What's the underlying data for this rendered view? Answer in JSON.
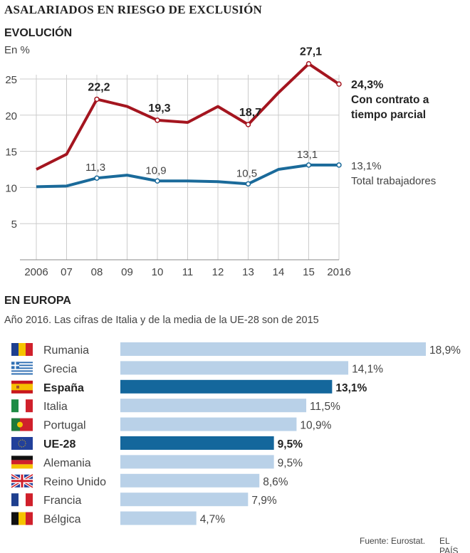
{
  "title": "ASALARIADOS EN RIESGO DE EXCLUSIÓN",
  "section1": {
    "heading": "EVOLUCIÓN",
    "unit": "En %"
  },
  "section2": {
    "heading": "EN EUROPA",
    "subtitle": "Año 2016. Las cifras de Italia y de la media de la UE-28 son de 2015"
  },
  "source": "Fuente: Eurostat.",
  "brand": "EL PAÍS",
  "colors": {
    "part_time": "#a4151f",
    "total": "#1a6a9a",
    "bar_light": "#b9d1e8",
    "bar_highlight": "#14679c"
  },
  "chart_data": [
    {
      "type": "line",
      "ylabel": "En %",
      "ylim": [
        0,
        27.1
      ],
      "yticks": [
        "5",
        "10",
        "15",
        "20",
        "25"
      ],
      "ytick_values": [
        5,
        10,
        15,
        20,
        25
      ],
      "categories": [
        "2006",
        "07",
        "08",
        "09",
        "10",
        "11",
        "12",
        "13",
        "14",
        "15",
        "2016"
      ],
      "grid": true,
      "series": [
        {
          "name": "Con contrato a tiempo parcial",
          "end_label": "24,3%",
          "name_lines": [
            "Con contrato a",
            "tiempo parcial"
          ],
          "values": [
            12.5,
            14.6,
            22.2,
            21.2,
            19.3,
            19.0,
            21.2,
            18.7,
            23.1,
            27.1,
            24.3
          ],
          "point_labels": {
            "2": "22,2",
            "4": "19,3",
            "7": "18,7",
            "9": "27,1"
          }
        },
        {
          "name": "Total trabajadores",
          "end_label": "13,1%",
          "name_lines": [
            "Total trabajadores"
          ],
          "values": [
            10.1,
            10.2,
            11.3,
            11.7,
            10.9,
            10.9,
            10.8,
            10.5,
            12.5,
            13.1,
            13.1
          ],
          "point_labels": {
            "2": "11,3",
            "4": "10,9",
            "7": "10,5",
            "9": "13,1"
          }
        }
      ]
    },
    {
      "type": "bar",
      "orientation": "horizontal",
      "categories": [
        "Rumania",
        "Grecia",
        "España",
        "Italia",
        "Portugal",
        "UE-28",
        "Alemania",
        "Reino Unido",
        "Francia",
        "Bélgica"
      ],
      "values": [
        18.9,
        14.1,
        13.1,
        11.5,
        10.9,
        9.5,
        9.5,
        8.6,
        7.9,
        4.7
      ],
      "labels": [
        "18,9%",
        "14,1%",
        "13,1%",
        "11,5%",
        "10,9%",
        "9,5%",
        "9,5%",
        "8,6%",
        "7,9%",
        "4,7%"
      ],
      "highlighted": [
        "España",
        "UE-28"
      ],
      "flags": [
        "romania-flag-icon",
        "greece-flag-icon",
        "spain-flag-icon",
        "italy-flag-icon",
        "portugal-flag-icon",
        "eu-flag-icon",
        "germany-flag-icon",
        "uk-flag-icon",
        "france-flag-icon",
        "belgium-flag-icon"
      ]
    }
  ]
}
